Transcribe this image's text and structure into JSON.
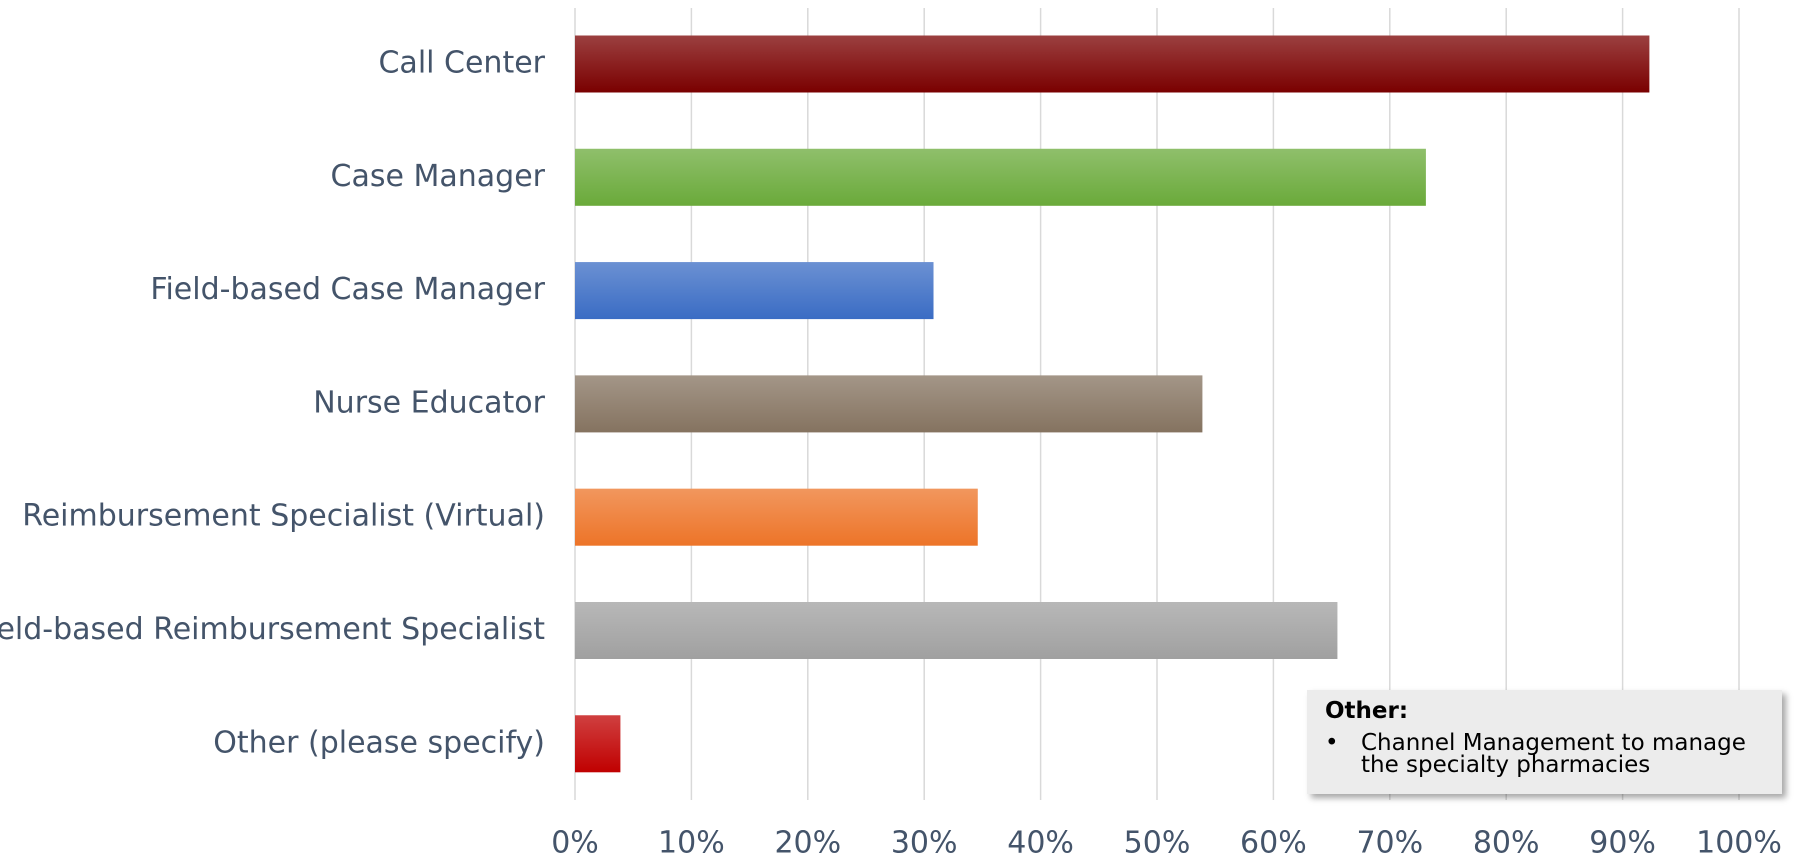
{
  "chart_data": {
    "type": "hbar",
    "categories": [
      "Call Center",
      "Case Manager",
      "Field-based Case Manager",
      "Nurse Educator",
      "Reimbursement Specialist (Virtual)",
      "Field-based Reimbursement Specialist",
      "Other (please specify)"
    ],
    "values": [
      92.3,
      73.1,
      30.8,
      53.9,
      34.6,
      65.5,
      3.9
    ],
    "colors": [
      "#7a0000",
      "#6aaa3a",
      "#3a6cc4",
      "#857360",
      "#ed7428",
      "#a0a0a0",
      "#c00000"
    ],
    "xlim": [
      0,
      100
    ],
    "xticks": [
      {
        "value": 0,
        "label": "0%"
      },
      {
        "value": 10,
        "label": "10%"
      },
      {
        "value": 20,
        "label": "20%"
      },
      {
        "value": 30,
        "label": "30%"
      },
      {
        "value": 40,
        "label": "40%"
      },
      {
        "value": 50,
        "label": "50%"
      },
      {
        "value": 60,
        "label": "60%"
      },
      {
        "value": 70,
        "label": "70%"
      },
      {
        "value": 80,
        "label": "80%"
      },
      {
        "value": 90,
        "label": "90%"
      },
      {
        "value": 100,
        "label": "100%"
      }
    ],
    "grid": true,
    "annotation": {
      "title": "Other:",
      "items": [
        "Channel Management to manage the specialty pharmacies"
      ]
    }
  }
}
